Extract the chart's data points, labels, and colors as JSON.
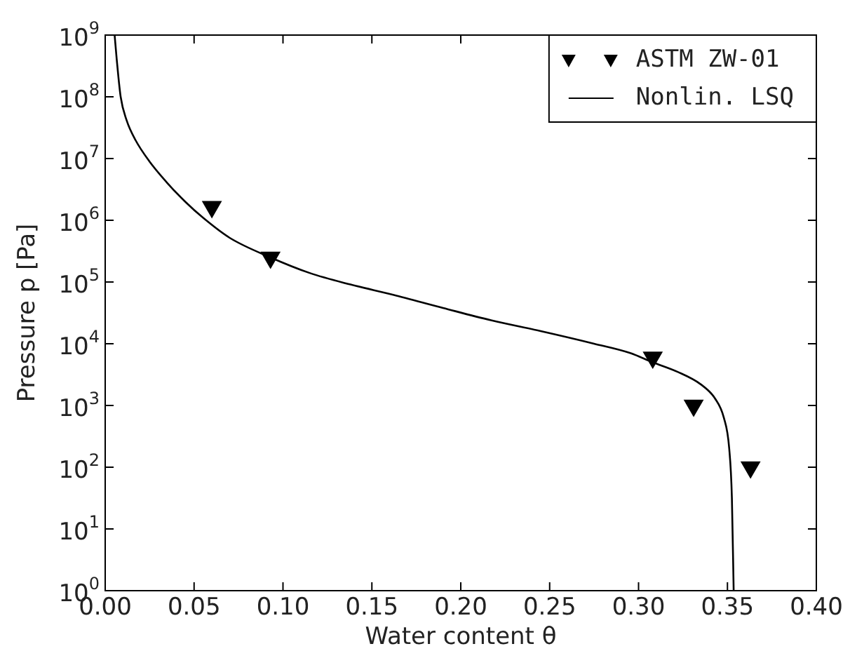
{
  "chart_data": {
    "type": "scatter",
    "xlabel": "Water content θ",
    "ylabel": "Pressure p [Pa]",
    "series": [
      {
        "name": "ASTM ZW-01",
        "color": "#000000",
        "marker": "triangle",
        "x": [
          0.06,
          0.093,
          0.308,
          0.331,
          0.363
        ],
        "values": [
          1650000,
          250000,
          6000,
          1000,
          100
        ]
      },
      {
        "name": "Nonlin. LSQ",
        "type": "line",
        "color": "#000000",
        "marker": "none",
        "line_style": "solid",
        "x": [
          0.0053,
          0.0065,
          0.0087,
          0.012,
          0.017,
          0.025,
          0.035,
          0.045,
          0.055,
          0.07,
          0.093,
          0.115,
          0.138,
          0.162,
          0.19,
          0.217,
          0.245,
          0.275,
          0.295,
          0.308,
          0.322,
          0.335,
          0.343,
          0.348,
          0.351,
          0.3525,
          0.3535
        ],
        "values": [
          1000000000.0,
          400000000.0,
          100000000.0,
          42000000.0,
          20000000.0,
          8900000.0,
          4000000.0,
          2000000.0,
          1100000.0,
          520000.0,
          250000.0,
          140000.0,
          91000.0,
          62000.0,
          38000.0,
          24000.0,
          16000.0,
          10000.0,
          7100.0,
          5000.0,
          3500.0,
          2200.0,
          1300.0,
          630,
          200,
          32,
          1
        ]
      }
    ],
    "xlim": [
      0,
      0.4
    ],
    "xticks": [
      {
        "value": 0,
        "label": "0.00"
      },
      0.05,
      {
        "value": 0.1,
        "label": "0.10"
      },
      0.15,
      {
        "value": 0.2,
        "label": "0.20"
      },
      0.25,
      {
        "value": 0.3,
        "label": "0.30"
      },
      0.35,
      {
        "value": 0.4,
        "label": "0.40"
      }
    ],
    "ylim": [
      1,
      1000000000.0
    ],
    "log": "y",
    "yticks": [
      {
        "value": 1,
        "label": "10$^{0}$"
      },
      {
        "value": 10,
        "label": "10$^{1}$"
      },
      {
        "value": 100,
        "label": "10$^{2}$"
      },
      {
        "value": 1000,
        "label": "10$^{3}$"
      },
      {
        "value": 10000,
        "label": "10$^{4}$"
      },
      {
        "value": 100000,
        "label": "10$^{5}$"
      },
      {
        "value": 1000000,
        "label": "10$^{6}$"
      },
      {
        "value": 10000000,
        "label": "10$^{7}$"
      },
      {
        "value": 100000000,
        "label": "10$^{8}$"
      },
      {
        "value": 1000000000,
        "label": "10$^{9}$"
      }
    ],
    "grid": false,
    "legend": "top right"
  }
}
